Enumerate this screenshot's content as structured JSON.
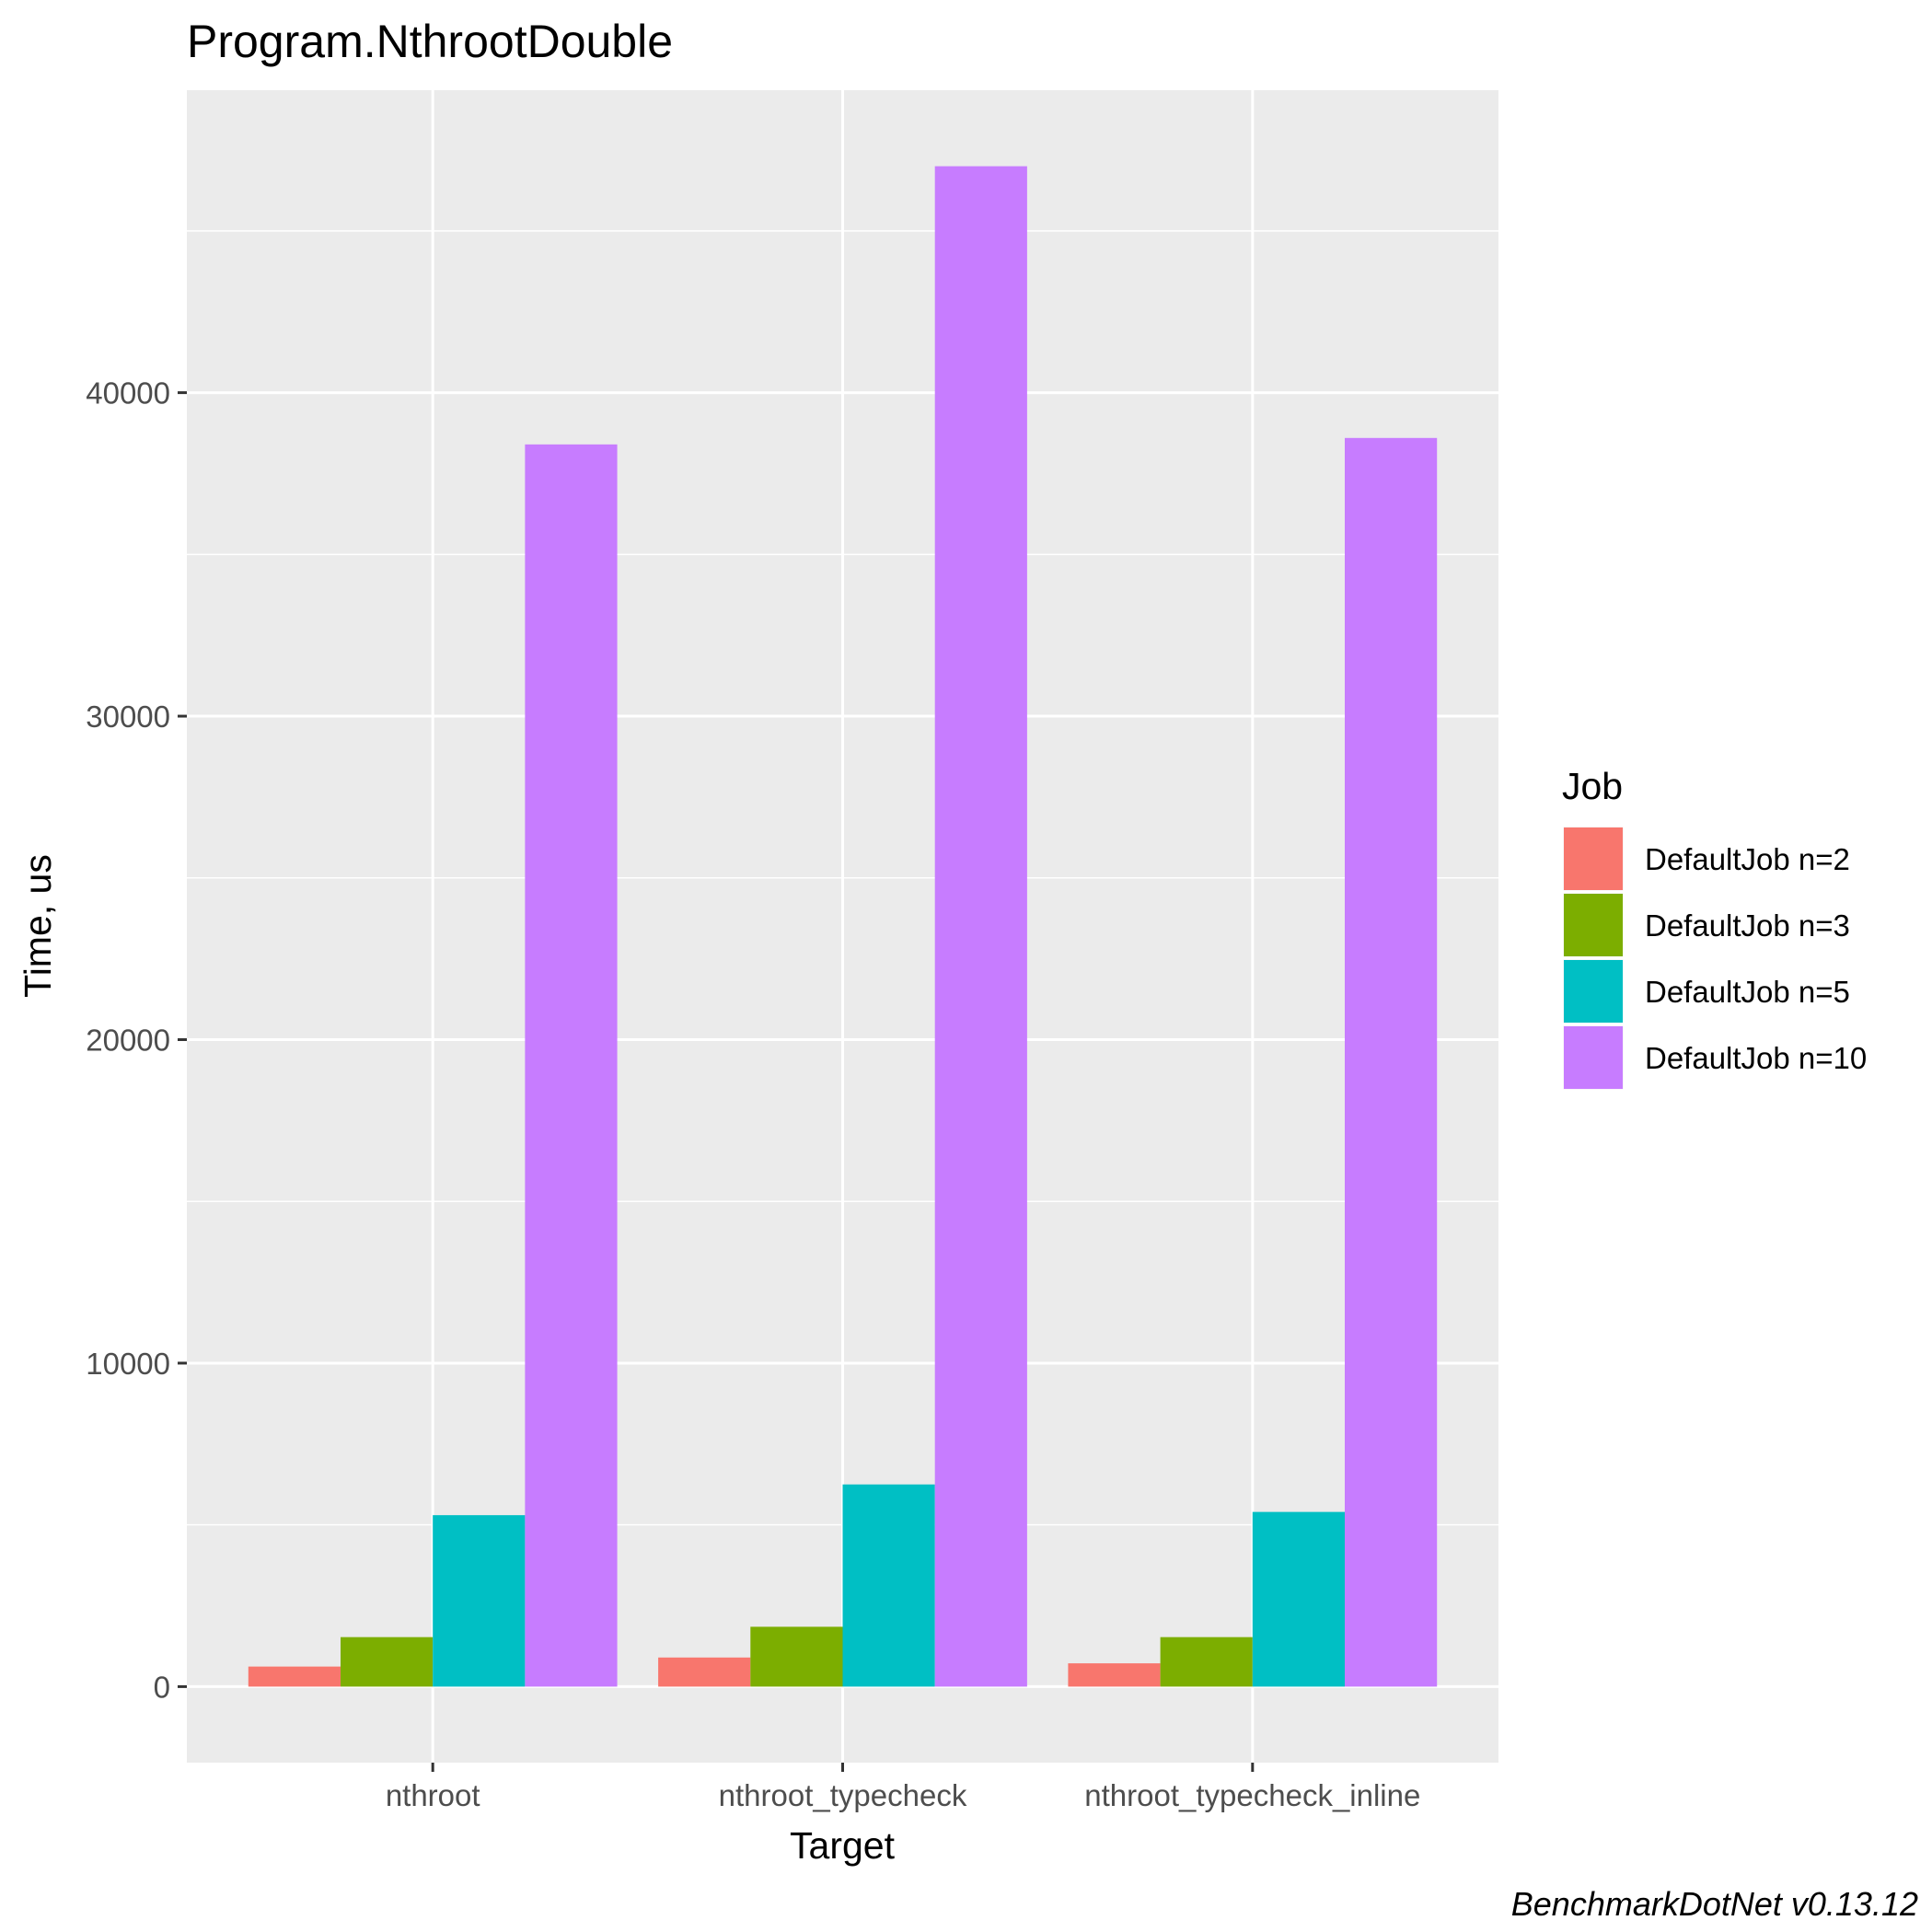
{
  "chart_data": {
    "type": "bar",
    "title": "Program.NthrootDouble",
    "xlabel": "Target",
    "ylabel": "Time, us",
    "categories": [
      "nthroot",
      "nthroot_typecheck",
      "nthroot_typecheck_inline"
    ],
    "series": [
      {
        "name": "DefaultJob n=2",
        "color": "#F8766D",
        "values": [
          620,
          900,
          720
        ]
      },
      {
        "name": "DefaultJob n=3",
        "color": "#7CAE00",
        "values": [
          1530,
          1850,
          1530
        ]
      },
      {
        "name": "DefaultJob n=5",
        "color": "#00BFC4",
        "values": [
          5300,
          6250,
          5400
        ]
      },
      {
        "name": "DefaultJob n=10",
        "color": "#C77CFF",
        "values": [
          38400,
          47000,
          38600
        ]
      }
    ],
    "yticks": [
      0,
      10000,
      20000,
      30000,
      40000
    ],
    "ytick_labels": [
      "0",
      "10000",
      "20000",
      "30000",
      "40000"
    ],
    "ylim": [
      -2350,
      49350
    ],
    "legend_title": "Job",
    "legend_position": "right",
    "grid": true,
    "panel_background": "#EBEBEB",
    "caption": "BenchmarkDotNet v0.13.12"
  }
}
